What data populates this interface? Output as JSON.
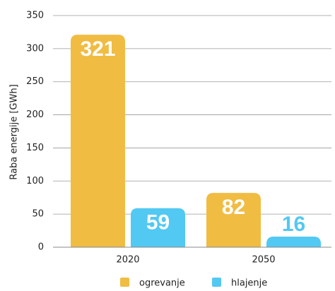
{
  "chart_data": {
    "type": "bar",
    "categories": [
      "2020",
      "2050"
    ],
    "series": [
      {
        "name": "ogrevanje",
        "color": "#f0bc42",
        "values": [
          321,
          82
        ]
      },
      {
        "name": "hlajenje",
        "color": "#52c9f2",
        "values": [
          59,
          16
        ]
      }
    ],
    "ylabel": "Raba energije [GWh]",
    "ylim": [
      0,
      350
    ],
    "yticks": [
      0,
      50,
      100,
      150,
      200,
      250,
      300,
      350
    ],
    "grid": true,
    "legend": "bottom"
  }
}
